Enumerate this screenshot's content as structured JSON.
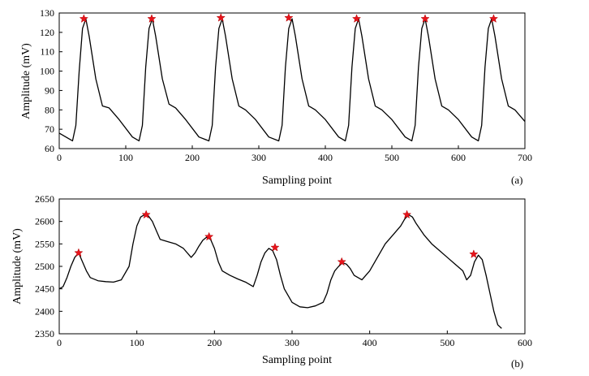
{
  "chart_data": [
    {
      "type": "line",
      "panel_label": "(a)",
      "xlabel": "Sampling point",
      "ylabel": "Amplitude (mV)",
      "xlim": [
        0,
        700
      ],
      "ylim": [
        60,
        130
      ],
      "xticks": [
        "0",
        "100",
        "200",
        "300",
        "400",
        "500",
        "600",
        "700"
      ],
      "yticks": [
        "60",
        "70",
        "80",
        "90",
        "100",
        "110",
        "120",
        "130"
      ],
      "grid": false,
      "marker_color": "#e8141c",
      "line_color": "#000000",
      "series": [
        {
          "x": [
            0,
            10,
            20,
            25,
            30,
            35,
            40,
            45,
            55,
            65,
            75,
            90,
            110,
            120,
            125,
            130,
            135,
            140,
            145,
            155,
            165,
            175,
            190,
            210,
            225,
            230,
            235,
            240,
            245,
            250,
            260,
            270,
            280,
            295,
            315,
            330,
            335,
            340,
            345,
            350,
            355,
            365,
            375,
            385,
            400,
            420,
            430,
            435,
            440,
            445,
            450,
            455,
            465,
            475,
            485,
            500,
            520,
            530,
            535,
            540,
            545,
            550,
            555,
            565,
            575,
            585,
            600,
            620,
            630,
            635,
            640,
            645,
            650,
            655,
            665,
            675,
            685,
            700
          ],
          "y": [
            68,
            66,
            64,
            72,
            100,
            122,
            127,
            118,
            96,
            82,
            81,
            75,
            66,
            64,
            72,
            102,
            122,
            127,
            118,
            96,
            83,
            81,
            75,
            66,
            64,
            72,
            102,
            122,
            127,
            118,
            96,
            82,
            80,
            75,
            66,
            64,
            72,
            102,
            122,
            127,
            118,
            96,
            82,
            80,
            75,
            66,
            64,
            72,
            102,
            122,
            127,
            118,
            96,
            82,
            80,
            75,
            66,
            64,
            72,
            102,
            122,
            127,
            118,
            96,
            82,
            80,
            75,
            66,
            64,
            72,
            102,
            122,
            127,
            118,
            96,
            82,
            80,
            74
          ]
        }
      ],
      "peaks": {
        "x": [
          37,
          139,
          243,
          345,
          447,
          550,
          653
        ],
        "y": [
          127,
          127,
          127.5,
          127.5,
          127,
          127,
          127
        ]
      }
    },
    {
      "type": "line",
      "panel_label": "(b)",
      "xlabel": "Sampling point",
      "ylabel": "Amplitude (mV)",
      "xlim": [
        0,
        600
      ],
      "ylim": [
        2350,
        2650
      ],
      "xticks": [
        "0",
        "100",
        "200",
        "300",
        "400",
        "500",
        "600"
      ],
      "yticks": [
        "2350",
        "2400",
        "2450",
        "2500",
        "2550",
        "2600",
        "2650"
      ],
      "grid": false,
      "marker_color": "#e8141c",
      "line_color": "#000000",
      "series": [
        {
          "x": [
            0,
            5,
            10,
            15,
            20,
            25,
            30,
            35,
            40,
            50,
            60,
            70,
            80,
            90,
            95,
            100,
            105,
            110,
            115,
            120,
            125,
            130,
            140,
            150,
            160,
            170,
            175,
            180,
            185,
            190,
            195,
            200,
            205,
            210,
            220,
            230,
            240,
            250,
            255,
            260,
            265,
            270,
            275,
            280,
            285,
            290,
            300,
            310,
            320,
            330,
            340,
            345,
            350,
            355,
            360,
            365,
            370,
            375,
            380,
            390,
            400,
            410,
            420,
            430,
            440,
            445,
            450,
            455,
            460,
            470,
            480,
            490,
            500,
            510,
            520,
            525,
            530,
            535,
            540,
            545,
            550,
            555,
            560,
            565,
            570
          ],
          "y": [
            2450,
            2455,
            2475,
            2500,
            2520,
            2530,
            2510,
            2490,
            2475,
            2468,
            2466,
            2465,
            2470,
            2500,
            2550,
            2590,
            2610,
            2615,
            2612,
            2600,
            2580,
            2560,
            2555,
            2550,
            2540,
            2520,
            2530,
            2545,
            2558,
            2565,
            2560,
            2540,
            2510,
            2490,
            2480,
            2472,
            2465,
            2455,
            2480,
            2510,
            2530,
            2540,
            2535,
            2515,
            2480,
            2450,
            2420,
            2410,
            2408,
            2412,
            2420,
            2440,
            2470,
            2490,
            2500,
            2508,
            2505,
            2495,
            2480,
            2470,
            2490,
            2520,
            2550,
            2570,
            2590,
            2605,
            2615,
            2610,
            2595,
            2570,
            2550,
            2535,
            2520,
            2505,
            2490,
            2470,
            2480,
            2510,
            2525,
            2515,
            2480,
            2440,
            2400,
            2370,
            2362
          ]
        }
      ],
      "peaks": {
        "x": [
          25,
          112,
          193,
          278,
          364,
          448,
          534
        ],
        "y": [
          2530,
          2615,
          2566,
          2542,
          2510,
          2615,
          2527
        ]
      }
    }
  ]
}
